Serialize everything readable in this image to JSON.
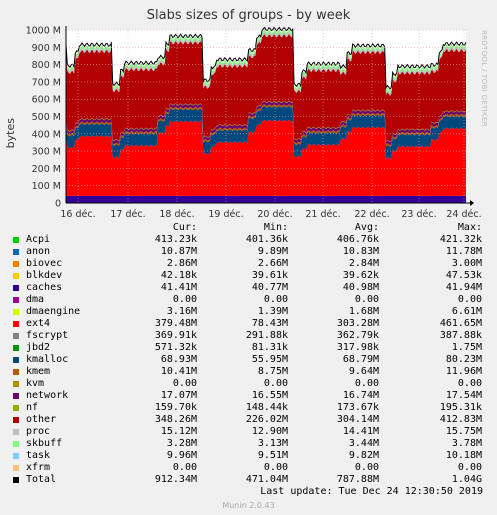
{
  "chart_data": {
    "type": "area",
    "title": "Slabs sizes of groups - by week",
    "ylabel": "bytes",
    "side_label": "RRDTOOL / TOBI OETIKER",
    "ylim": [
      0,
      1000000000
    ],
    "y_ticks": [
      "0",
      "100 M",
      "200 M",
      "300 M",
      "400 M",
      "500 M",
      "600 M",
      "700 M",
      "800 M",
      "900 M",
      "1000 M"
    ],
    "x_ticks": [
      "16 déc.",
      "17 déc.",
      "18 déc.",
      "19 déc.",
      "20 déc.",
      "21 déc.",
      "22 déc.",
      "23 déc.",
      "24 déc."
    ],
    "grid": true,
    "stack_order": [
      "caches",
      "ext4",
      "kmalloc",
      "kmem",
      "network",
      "nf",
      "other",
      "proc",
      "skbuff"
    ],
    "day_profile": [
      {
        "day": "16 déc.",
        "ext4": 3.45,
        "kmalloc": 0.7,
        "other": 3.9,
        "total": 8.15
      },
      {
        "day": "17 déc.",
        "ext4": 2.9,
        "kmalloc": 0.7,
        "other": 3.4,
        "total": 7.4
      },
      {
        "day": "18 déc.",
        "ext4": 4.3,
        "kmalloc": 0.7,
        "other": 3.55,
        "total": 8.9
      },
      {
        "day": "19 déc.",
        "ext4": 3.1,
        "kmalloc": 0.7,
        "other": 3.4,
        "total": 7.6
      },
      {
        "day": "20 déc.",
        "ext4": 4.35,
        "kmalloc": 0.8,
        "other": 3.8,
        "total": 9.3
      },
      {
        "day": "21 déc.",
        "ext4": 2.95,
        "kmalloc": 0.7,
        "other": 3.3,
        "total": 7.3
      },
      {
        "day": "22 déc.",
        "ext4": 3.95,
        "kmalloc": 0.7,
        "other": 3.35,
        "total": 8.45
      },
      {
        "day": "23 déc.",
        "ext4": 2.85,
        "kmalloc": 0.7,
        "other": 3.25,
        "total": 7.15
      },
      {
        "day": "24 déc.",
        "ext4": 3.9,
        "kmalloc": 0.7,
        "other": 3.5,
        "total": 8.5
      }
    ],
    "columns": [
      "Cur:",
      "Min:",
      "Avg:",
      "Max:"
    ],
    "series": [
      {
        "name": "Acpi",
        "color": "#00cc00",
        "cur": "413.23k",
        "min": "401.36k",
        "avg": "406.76k",
        "max": "421.32k"
      },
      {
        "name": "anon",
        "color": "#0066b3",
        "cur": "10.87M",
        "min": "9.89M",
        "avg": "10.83M",
        "max": "11.78M"
      },
      {
        "name": "biovec",
        "color": "#ff8000",
        "cur": "2.86M",
        "min": "2.66M",
        "avg": "2.84M",
        "max": "3.00M"
      },
      {
        "name": "blkdev",
        "color": "#ffcc00",
        "cur": "42.18k",
        "min": "39.61k",
        "avg": "39.62k",
        "max": "47.53k"
      },
      {
        "name": "caches",
        "color": "#330099",
        "cur": "41.41M",
        "min": "40.77M",
        "avg": "40.98M",
        "max": "41.94M"
      },
      {
        "name": "dma",
        "color": "#990099",
        "cur": "0.00",
        "min": "0.00",
        "avg": "0.00",
        "max": "0.00"
      },
      {
        "name": "dmaengine",
        "color": "#ccff00",
        "cur": "3.16M",
        "min": "1.39M",
        "avg": "1.68M",
        "max": "6.61M"
      },
      {
        "name": "ext4",
        "color": "#ff0000",
        "cur": "379.48M",
        "min": "78.43M",
        "avg": "303.28M",
        "max": "461.65M"
      },
      {
        "name": "fscrypt",
        "color": "#808080",
        "cur": "369.91k",
        "min": "291.88k",
        "avg": "362.79k",
        "max": "387.88k"
      },
      {
        "name": "jbd2",
        "color": "#008f00",
        "cur": "571.32k",
        "min": "81.31k",
        "avg": "317.98k",
        "max": "1.75M"
      },
      {
        "name": "kmalloc",
        "color": "#00487d",
        "cur": "68.93M",
        "min": "55.95M",
        "avg": "68.79M",
        "max": "80.23M"
      },
      {
        "name": "kmem",
        "color": "#b35a00",
        "cur": "10.41M",
        "min": "8.75M",
        "avg": "9.64M",
        "max": "11.96M"
      },
      {
        "name": "kvm",
        "color": "#b38f00",
        "cur": "0.00",
        "min": "0.00",
        "avg": "0.00",
        "max": "0.00"
      },
      {
        "name": "network",
        "color": "#6b006b",
        "cur": "17.07M",
        "min": "16.55M",
        "avg": "16.74M",
        "max": "17.54M"
      },
      {
        "name": "nf",
        "color": "#8fb300",
        "cur": "159.70k",
        "min": "148.44k",
        "avg": "173.67k",
        "max": "195.31k"
      },
      {
        "name": "other",
        "color": "#b30000",
        "cur": "348.26M",
        "min": "226.02M",
        "avg": "304.14M",
        "max": "412.83M"
      },
      {
        "name": "proc",
        "color": "#bebebe",
        "cur": "15.12M",
        "min": "12.90M",
        "avg": "14.41M",
        "max": "15.75M"
      },
      {
        "name": "skbuff",
        "color": "#80ff80",
        "cur": "3.28M",
        "min": "3.13M",
        "avg": "3.44M",
        "max": "3.78M"
      },
      {
        "name": "task",
        "color": "#80c9ff",
        "cur": "9.96M",
        "min": "9.51M",
        "avg": "9.82M",
        "max": "10.18M"
      },
      {
        "name": "xfrm",
        "color": "#ffc080",
        "cur": "0.00",
        "min": "0.00",
        "avg": "0.00",
        "max": "0.00"
      },
      {
        "name": "Total",
        "color": "#000000",
        "cur": "912.34M",
        "min": "471.04M",
        "avg": "787.88M",
        "max": "1.04G"
      }
    ],
    "last_update": "Last update: Tue Dec 24 12:30:50 2019",
    "footer": "Munin 2.0.43"
  }
}
